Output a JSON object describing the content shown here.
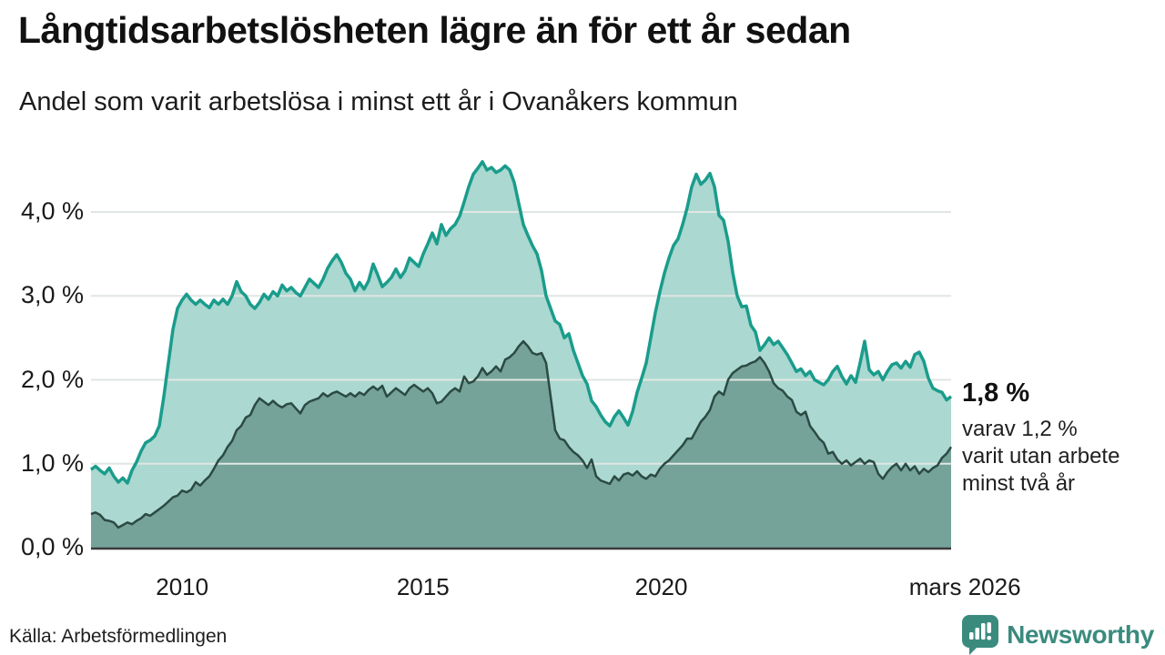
{
  "header": {
    "title": "Långtidsarbetslösheten lägre än för ett år sedan",
    "subtitle": "Andel som varit arbetslösa i minst ett år i Ovanåkers kommun"
  },
  "annotation": {
    "value": "1,8 %",
    "lines": [
      "varav 1,2 %",
      "varit utan arbete",
      "minst två år"
    ]
  },
  "footer": {
    "source": "Källa: Arbetsförmedlingen",
    "logo_text": "Newsworthy"
  },
  "colors": {
    "total_line": "#1a9c8c",
    "total_fill": "#abd8d0",
    "two_year_line": "#2b4a43",
    "two_year_fill": "#75a399",
    "gridline": "#e0e6e3",
    "axis": "#3a3a3a",
    "logo_teal": "#3a8b7e"
  },
  "chart_data": {
    "type": "area",
    "title": "Långtidsarbetslösheten lägre än för ett år sedan",
    "subtitle": "Andel som varit arbetslösa i minst ett år i Ovanåkers kommun",
    "ylim": [
      0,
      4.75
    ],
    "grid": true,
    "legend": "none (annotated at line end)",
    "y_ticks": [
      {
        "label": "0,0 %",
        "value": 0
      },
      {
        "label": "1,0 %",
        "value": 1
      },
      {
        "label": "2,0 %",
        "value": 2
      },
      {
        "label": "3,0 %",
        "value": 3
      },
      {
        "label": "4,0 %",
        "value": 4
      }
    ],
    "x_ticks": [
      {
        "label": "2010",
        "t": 0.106
      },
      {
        "label": "2015",
        "t": 0.386
      },
      {
        "label": "2020",
        "t": 0.663
      },
      {
        "label": "mars 2026",
        "t": 1.016
      }
    ],
    "end_labels": {
      "total": "1,8 %",
      "two_years": "1,2 %"
    },
    "series": [
      {
        "name": "Andel arbetslösa minst ett år",
        "values": [
          0.93,
          0.97,
          0.92,
          0.88,
          0.95,
          0.85,
          0.78,
          0.83,
          0.77,
          0.92,
          1.02,
          1.15,
          1.25,
          1.28,
          1.33,
          1.45,
          1.8,
          2.2,
          2.6,
          2.85,
          2.95,
          3.02,
          2.95,
          2.9,
          2.95,
          2.9,
          2.86,
          2.95,
          2.9,
          2.96,
          2.9,
          3.0,
          3.17,
          3.05,
          3.0,
          2.9,
          2.85,
          2.92,
          3.02,
          2.96,
          3.05,
          3.0,
          3.13,
          3.06,
          3.1,
          3.04,
          3.0,
          3.1,
          3.2,
          3.15,
          3.1,
          3.2,
          3.33,
          3.42,
          3.49,
          3.4,
          3.27,
          3.2,
          3.06,
          3.16,
          3.08,
          3.18,
          3.38,
          3.25,
          3.11,
          3.16,
          3.22,
          3.32,
          3.22,
          3.3,
          3.45,
          3.4,
          3.35,
          3.5,
          3.62,
          3.75,
          3.62,
          3.85,
          3.72,
          3.8,
          3.85,
          3.95,
          4.12,
          4.3,
          4.45,
          4.52,
          4.6,
          4.5,
          4.53,
          4.47,
          4.5,
          4.55,
          4.5,
          4.35,
          4.1,
          3.85,
          3.72,
          3.6,
          3.5,
          3.3,
          3.0,
          2.85,
          2.7,
          2.66,
          2.5,
          2.55,
          2.35,
          2.2,
          2.05,
          1.95,
          1.75,
          1.68,
          1.58,
          1.5,
          1.45,
          1.56,
          1.63,
          1.55,
          1.46,
          1.62,
          1.85,
          2.02,
          2.2,
          2.5,
          2.8,
          3.05,
          3.27,
          3.45,
          3.6,
          3.68,
          3.85,
          4.05,
          4.3,
          4.45,
          4.33,
          4.38,
          4.46,
          4.3,
          3.96,
          3.9,
          3.65,
          3.28,
          3.0,
          2.87,
          2.88,
          2.65,
          2.57,
          2.35,
          2.42,
          2.5,
          2.42,
          2.46,
          2.38,
          2.3,
          2.2,
          2.1,
          2.13,
          2.05,
          2.1,
          2.0,
          1.97,
          1.94,
          2.0,
          2.1,
          2.16,
          2.04,
          1.95,
          2.05,
          1.97,
          2.2,
          2.46,
          2.12,
          2.06,
          2.1,
          2.0,
          2.1,
          2.18,
          2.2,
          2.14,
          2.22,
          2.15,
          2.3,
          2.33,
          2.22,
          2.02,
          1.9,
          1.87,
          1.85,
          1.76,
          1.8
        ]
      },
      {
        "name": "varav arbetslösa minst två år",
        "values": [
          0.4,
          0.42,
          0.39,
          0.33,
          0.32,
          0.3,
          0.24,
          0.27,
          0.3,
          0.28,
          0.32,
          0.35,
          0.4,
          0.38,
          0.42,
          0.46,
          0.5,
          0.55,
          0.6,
          0.62,
          0.68,
          0.66,
          0.69,
          0.78,
          0.74,
          0.8,
          0.85,
          0.94,
          1.04,
          1.1,
          1.2,
          1.27,
          1.4,
          1.45,
          1.55,
          1.58,
          1.7,
          1.78,
          1.74,
          1.7,
          1.75,
          1.7,
          1.67,
          1.71,
          1.72,
          1.66,
          1.6,
          1.7,
          1.74,
          1.76,
          1.78,
          1.84,
          1.8,
          1.84,
          1.86,
          1.83,
          1.8,
          1.84,
          1.8,
          1.85,
          1.82,
          1.88,
          1.92,
          1.88,
          1.93,
          1.8,
          1.85,
          1.9,
          1.86,
          1.82,
          1.9,
          1.94,
          1.9,
          1.86,
          1.9,
          1.84,
          1.72,
          1.74,
          1.8,
          1.86,
          1.9,
          1.86,
          2.04,
          1.96,
          1.98,
          2.04,
          2.14,
          2.06,
          2.1,
          2.16,
          2.1,
          2.24,
          2.27,
          2.32,
          2.4,
          2.46,
          2.4,
          2.32,
          2.3,
          2.32,
          2.2,
          1.8,
          1.4,
          1.3,
          1.28,
          1.2,
          1.14,
          1.1,
          1.04,
          0.95,
          1.05,
          0.85,
          0.8,
          0.78,
          0.76,
          0.85,
          0.8,
          0.87,
          0.89,
          0.86,
          0.91,
          0.85,
          0.82,
          0.87,
          0.85,
          0.94,
          1.0,
          1.04,
          1.1,
          1.16,
          1.22,
          1.3,
          1.3,
          1.4,
          1.5,
          1.56,
          1.64,
          1.8,
          1.86,
          1.82,
          2.0,
          2.08,
          2.12,
          2.16,
          2.17,
          2.2,
          2.22,
          2.27,
          2.2,
          2.1,
          1.96,
          1.9,
          1.87,
          1.8,
          1.76,
          1.62,
          1.58,
          1.62,
          1.45,
          1.38,
          1.3,
          1.25,
          1.12,
          1.14,
          1.05,
          1.0,
          1.04,
          0.98,
          1.02,
          1.06,
          1.0,
          1.04,
          1.02,
          0.88,
          0.82,
          0.9,
          0.96,
          1.0,
          0.92,
          1.0,
          0.92,
          0.97,
          0.88,
          0.94,
          0.9,
          0.95,
          0.98,
          1.07,
          1.12,
          1.2
        ]
      }
    ]
  }
}
